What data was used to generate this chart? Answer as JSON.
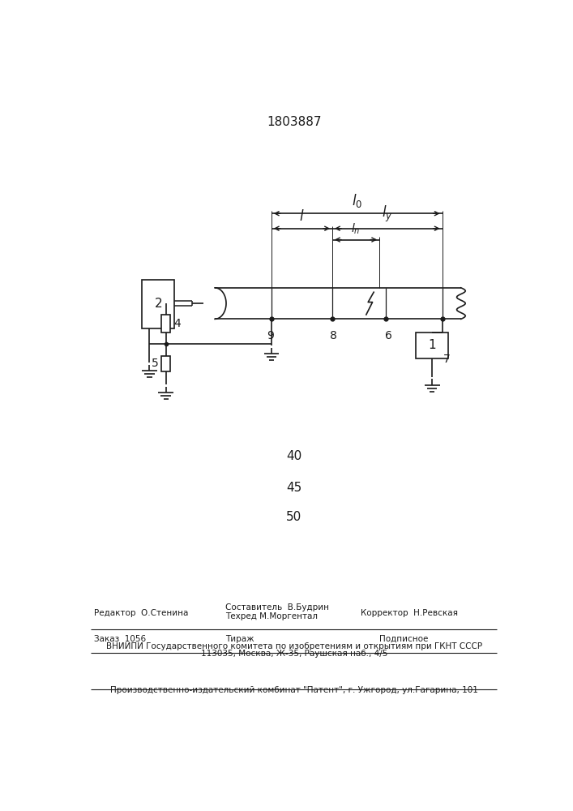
{
  "title": "1803887",
  "background_color": "#ffffff",
  "line_color": "#1a1a1a",
  "text_color": "#1a1a1a",
  "label_2": "2",
  "label_1": "1",
  "label_4": "4",
  "label_5": "5",
  "label_6": "6",
  "label_7": "7",
  "label_8": "8",
  "label_9": "9",
  "label_l0": "$l_0$",
  "label_l": "$l$",
  "label_ly": "$l_y$",
  "label_ln": "$l_n$",
  "num_40": "40",
  "num_45": "45",
  "num_50": "50",
  "bottom_editor": "Редактор  О.Стенина",
  "bottom_compiler": "Составитель  В.Будрин",
  "bottom_techred": "Техред М.Моргентал",
  "bottom_corrector": "Корректор  Н.Ревская",
  "bottom_order": "Заказ  1056",
  "bottom_tirazh": "Тираж",
  "bottom_podpisnoe": "Подписное",
  "bottom_vniip": "ВНИИПИ Государственного комитета по изобретениям и открытиям при ГКНТ СССР",
  "bottom_addr": "113035, Москва, Ж-35, Раушская наб., 4/5",
  "bottom_factory": "Производственно-издательский комбинат \"Патент\", г. Ужгород, ул.Гагарина, 101"
}
